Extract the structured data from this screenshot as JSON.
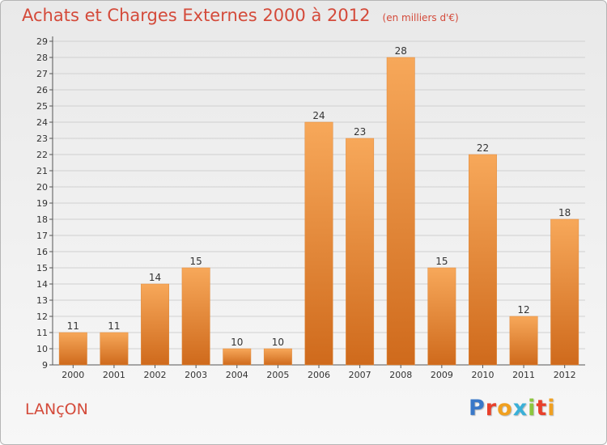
{
  "header": {
    "title": "Achats et Charges Externes 2000 à 2012",
    "unit": "(en milliers d'€)"
  },
  "commune": "LANçON",
  "logo": {
    "text": "Proxiti",
    "letter_colors": [
      "#3a78c8",
      "#e8402b",
      "#f0a020",
      "#3ab0d8",
      "#8cc63e",
      "#e8402b",
      "#f0a020"
    ]
  },
  "colors": {
    "bar_top": "#f7a85a",
    "bar_bottom": "#cf6a1c",
    "grid": "#d0d0d0",
    "axis": "#555555",
    "title": "#d44a3a"
  },
  "chart_data": {
    "type": "bar",
    "title": "Achats et Charges Externes 2000 à 2012",
    "xlabel": "",
    "ylabel": "",
    "categories": [
      "2000",
      "2001",
      "2002",
      "2003",
      "2004",
      "2005",
      "2006",
      "2007",
      "2008",
      "2009",
      "2010",
      "2011",
      "2012"
    ],
    "values": [
      11,
      11,
      14,
      15,
      10,
      10,
      24,
      23,
      28,
      15,
      22,
      12,
      18
    ],
    "ylim": [
      9,
      29
    ],
    "yticks": [
      9,
      10,
      11,
      12,
      13,
      14,
      15,
      16,
      17,
      18,
      19,
      20,
      21,
      22,
      23,
      24,
      25,
      26,
      27,
      28,
      29
    ],
    "grid": true,
    "data_labels": true
  }
}
